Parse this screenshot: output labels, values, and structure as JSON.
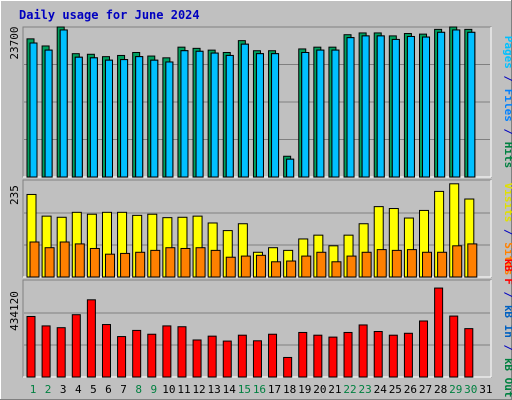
{
  "chart_data": [
    {
      "type": "bar",
      "title": "Daily usage for June 2024",
      "panel": "hits-files-pages",
      "ytick_label": "23700",
      "ylim": [
        0,
        25300
      ],
      "ylabel_segments": [
        {
          "text": "Pages",
          "color": "#00c0ff"
        },
        {
          "text": " / ",
          "color": "#0000c0"
        },
        {
          "text": "Files",
          "color": "#0080ff"
        },
        {
          "text": " / ",
          "color": "#0000c0"
        },
        {
          "text": "Hits",
          "color": "#008040"
        }
      ],
      "categories": [
        "1",
        "2",
        "3",
        "4",
        "5",
        "6",
        "7",
        "8",
        "9",
        "10",
        "11",
        "12",
        "13",
        "14",
        "15",
        "16",
        "17",
        "18",
        "19",
        "20",
        "21",
        "22",
        "23",
        "24",
        "25",
        "26",
        "27",
        "28",
        "29",
        "30",
        "31"
      ],
      "series": [
        {
          "name": "Hits",
          "color": "#00a060",
          "values": [
            23300,
            22100,
            25300,
            20800,
            20700,
            20300,
            20500,
            21000,
            20400,
            20100,
            21900,
            21700,
            21400,
            21000,
            23000,
            21300,
            21300,
            3500,
            21600,
            21900,
            21900,
            24000,
            24300,
            24300,
            23800,
            24200,
            24100,
            24900,
            25300,
            24900,
            null
          ]
        },
        {
          "name": "Files",
          "color": "#0080ff",
          "values": [
            22600,
            21400,
            24800,
            20200,
            20100,
            19700,
            19800,
            20300,
            19700,
            19400,
            21300,
            21200,
            20900,
            20500,
            22400,
            20800,
            20800,
            3000,
            21000,
            21400,
            21400,
            23500,
            23800,
            23800,
            23200,
            23700,
            23600,
            24400,
            24800,
            24400,
            null
          ]
        },
        {
          "name": "Pages",
          "color": "#00c0ff",
          "values": [
            22600,
            21400,
            24800,
            20200,
            20100,
            19700,
            19800,
            20300,
            19700,
            19400,
            21300,
            21200,
            20900,
            20500,
            22400,
            20800,
            20800,
            3000,
            21000,
            21400,
            21400,
            23500,
            23800,
            23800,
            23200,
            23700,
            23600,
            24400,
            24800,
            24400,
            null
          ]
        }
      ]
    },
    {
      "type": "bar",
      "panel": "visits-sites",
      "ytick_label": "235",
      "ylim": [
        0,
        255
      ],
      "ylabel_segments": [
        {
          "text": "Visits",
          "color": "#e0e000"
        },
        {
          "text": " / ",
          "color": "#0000c0"
        },
        {
          "text": "Sites",
          "color": "#ff8000"
        }
      ],
      "categories": [
        "1",
        "2",
        "3",
        "4",
        "5",
        "6",
        "7",
        "8",
        "9",
        "10",
        "11",
        "12",
        "13",
        "14",
        "15",
        "16",
        "17",
        "18",
        "19",
        "20",
        "21",
        "22",
        "23",
        "24",
        "25",
        "26",
        "27",
        "28",
        "29",
        "30",
        "31"
      ],
      "series": [
        {
          "name": "Visits",
          "color": "#ffff00",
          "values": [
            217,
            160,
            157,
            170,
            165,
            170,
            170,
            162,
            165,
            156,
            157,
            160,
            142,
            122,
            140,
            65,
            77,
            70,
            100,
            110,
            82,
            110,
            140,
            185,
            180,
            155,
            175,
            225,
            245,
            205,
            null
          ]
        },
        {
          "name": "Sites",
          "color": "#ff8000",
          "values": [
            92,
            77,
            92,
            87,
            75,
            60,
            62,
            65,
            70,
            77,
            75,
            77,
            70,
            52,
            55,
            57,
            40,
            42,
            55,
            65,
            40,
            55,
            65,
            72,
            70,
            72,
            65,
            65,
            82,
            87,
            null
          ]
        }
      ]
    },
    {
      "type": "bar",
      "panel": "kbytes",
      "ytick_label": "434120",
      "ylim": [
        0,
        710000
      ],
      "ylabel_segments": [
        {
          "text": "kB F",
          "color": "#ff0000"
        },
        {
          "text": " / ",
          "color": "#0000c0"
        },
        {
          "text": "kB In",
          "color": "#0060c0"
        },
        {
          "text": " / ",
          "color": "#0000c0"
        },
        {
          "text": "kB Out",
          "color": "#008040"
        }
      ],
      "categories": [
        "1",
        "2",
        "3",
        "4",
        "5",
        "6",
        "7",
        "8",
        "9",
        "10",
        "11",
        "12",
        "13",
        "14",
        "15",
        "16",
        "17",
        "18",
        "19",
        "20",
        "21",
        "22",
        "23",
        "24",
        "25",
        "26",
        "27",
        "28",
        "29",
        "30",
        "31"
      ],
      "series": [
        {
          "name": "kB F",
          "color": "#ff0000",
          "values": [
            443000,
            374000,
            361000,
            456000,
            565000,
            384000,
            296000,
            341000,
            313000,
            374000,
            368000,
            271000,
            299000,
            263000,
            306000,
            265000,
            313000,
            143000,
            326000,
            306000,
            292000,
            326000,
            381000,
            333000,
            306000,
            320000,
            410000,
            651000,
            446000,
            354000,
            null
          ]
        }
      ]
    }
  ],
  "x_axis": {
    "labels": [
      {
        "text": "1",
        "color": "#008040"
      },
      {
        "text": "2",
        "color": "#008040"
      },
      {
        "text": "3",
        "color": "#000000"
      },
      {
        "text": "4",
        "color": "#000000"
      },
      {
        "text": "5",
        "color": "#000000"
      },
      {
        "text": "6",
        "color": "#000000"
      },
      {
        "text": "7",
        "color": "#000000"
      },
      {
        "text": "8",
        "color": "#008040"
      },
      {
        "text": "9",
        "color": "#008040"
      },
      {
        "text": "10",
        "color": "#000000"
      },
      {
        "text": "11",
        "color": "#000000"
      },
      {
        "text": "12",
        "color": "#000000"
      },
      {
        "text": "13",
        "color": "#000000"
      },
      {
        "text": "14",
        "color": "#000000"
      },
      {
        "text": "15",
        "color": "#008040"
      },
      {
        "text": "16",
        "color": "#008040"
      },
      {
        "text": "17",
        "color": "#000000"
      },
      {
        "text": "18",
        "color": "#000000"
      },
      {
        "text": "19",
        "color": "#000000"
      },
      {
        "text": "20",
        "color": "#000000"
      },
      {
        "text": "21",
        "color": "#000000"
      },
      {
        "text": "22",
        "color": "#008040"
      },
      {
        "text": "23",
        "color": "#008040"
      },
      {
        "text": "24",
        "color": "#000000"
      },
      {
        "text": "25",
        "color": "#000000"
      },
      {
        "text": "26",
        "color": "#000000"
      },
      {
        "text": "27",
        "color": "#000000"
      },
      {
        "text": "28",
        "color": "#000000"
      },
      {
        "text": "29",
        "color": "#008040"
      },
      {
        "text": "30",
        "color": "#008040"
      },
      {
        "text": "31",
        "color": "#000000"
      }
    ]
  },
  "colors": {
    "background": "#c0c0c0",
    "plot_background": "#c0c0c0",
    "gridline": "#808080",
    "title_text": "#0000c0",
    "bar_outline": "#000000"
  }
}
